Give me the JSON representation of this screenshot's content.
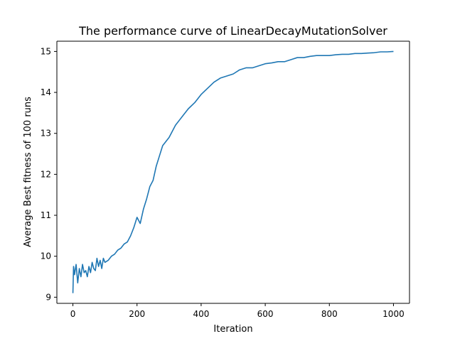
{
  "chart_data": {
    "type": "line",
    "title": "The performance curve of LinearDecayMutationSolver",
    "xlabel": "Iteration",
    "ylabel": "Average Best fitness of 100 runs",
    "xlim": [
      -50,
      1050
    ],
    "ylim": [
      8.85,
      15.25
    ],
    "x_ticks": [
      0,
      200,
      400,
      600,
      800,
      1000
    ],
    "y_ticks": [
      9,
      10,
      11,
      12,
      13,
      14,
      15
    ],
    "grid": false,
    "line_color": "#1f77b4",
    "series": [
      {
        "name": "",
        "x": [
          0,
          2,
          5,
          10,
          15,
          20,
          25,
          30,
          35,
          40,
          45,
          50,
          55,
          60,
          65,
          70,
          75,
          80,
          85,
          90,
          95,
          100,
          110,
          120,
          130,
          140,
          150,
          160,
          170,
          180,
          190,
          200,
          210,
          220,
          230,
          240,
          250,
          260,
          270,
          280,
          290,
          300,
          320,
          340,
          360,
          380,
          400,
          420,
          440,
          460,
          480,
          500,
          520,
          540,
          560,
          580,
          600,
          620,
          640,
          660,
          680,
          700,
          720,
          740,
          760,
          780,
          800,
          820,
          840,
          860,
          880,
          900,
          920,
          940,
          960,
          980,
          1000
        ],
        "values": [
          9.1,
          9.75,
          9.55,
          9.8,
          9.35,
          9.7,
          9.5,
          9.8,
          9.6,
          9.65,
          9.5,
          9.75,
          9.6,
          9.85,
          9.7,
          9.65,
          9.95,
          9.75,
          9.9,
          9.7,
          9.95,
          9.85,
          9.9,
          10.0,
          10.05,
          10.15,
          10.2,
          10.3,
          10.35,
          10.5,
          10.7,
          10.95,
          10.8,
          11.15,
          11.4,
          11.7,
          11.85,
          12.2,
          12.45,
          12.7,
          12.8,
          12.9,
          13.2,
          13.4,
          13.6,
          13.75,
          13.95,
          14.1,
          14.25,
          14.35,
          14.4,
          14.45,
          14.55,
          14.6,
          14.6,
          14.65,
          14.7,
          14.72,
          14.75,
          14.75,
          14.8,
          14.85,
          14.85,
          14.88,
          14.9,
          14.9,
          14.9,
          14.92,
          14.93,
          14.93,
          14.95,
          14.95,
          14.96,
          14.97,
          14.99,
          14.99,
          15.0
        ]
      }
    ]
  }
}
